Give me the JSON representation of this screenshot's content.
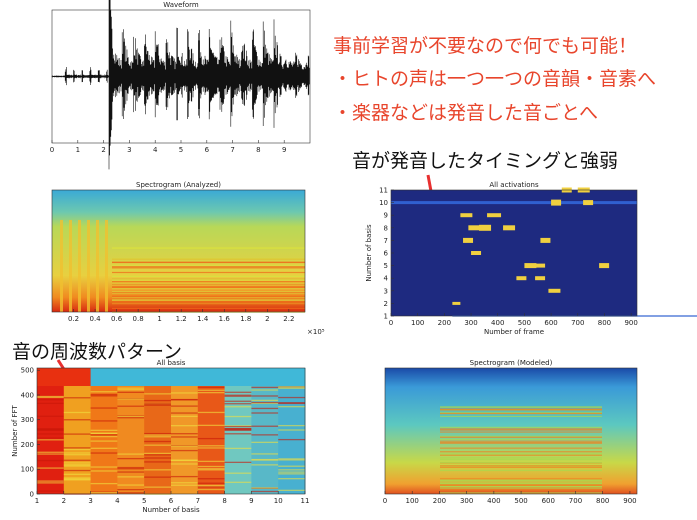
{
  "notes": {
    "red_lines": [
      "事前学習が不要なので何でも可能！",
      "・ヒトの声は一つ一つの音韻・音素へ",
      "・楽器などは発音した音ごとへ"
    ],
    "activation_caption": "音が発音したタイミングと強弱",
    "basis_caption": "音の周波数パターン"
  },
  "chart_data": [
    {
      "type": "waveform",
      "title": "Waveform",
      "xlim": [
        0,
        10
      ],
      "xticks": [
        0,
        1,
        2,
        3,
        4,
        5,
        6,
        7,
        8,
        9
      ]
    },
    {
      "type": "heatmap",
      "title": "Spectrogram (Analyzed)",
      "xlim": [
        0,
        2.35
      ],
      "xticks": [
        0.2,
        0.4,
        0.6,
        0.8,
        1,
        1.2,
        1.4,
        1.6,
        1.8,
        2,
        2.2
      ],
      "x_scale_label": "×10⁵"
    },
    {
      "type": "heatmap",
      "title": "All activations",
      "xlim": [
        0,
        922
      ],
      "xticks": [
        0,
        100,
        200,
        300,
        400,
        500,
        600,
        700,
        800,
        900
      ],
      "ylim": [
        1,
        11
      ],
      "yticks": [
        1,
        2,
        3,
        4,
        5,
        6,
        7,
        8,
        9,
        10,
        11
      ],
      "xlabel": "Number of frame",
      "ylabel": "Number of basis"
    },
    {
      "type": "heatmap",
      "title": "All basis",
      "xlim": [
        1,
        11
      ],
      "xticks": [
        1,
        2,
        3,
        4,
        5,
        6,
        7,
        8,
        9,
        10,
        11
      ],
      "ylim": [
        0,
        509
      ],
      "yticks": [
        0,
        100,
        200,
        300,
        400,
        500
      ],
      "xlabel": "Number of basis",
      "ylabel": "Number of FFT"
    },
    {
      "type": "heatmap",
      "title": "Spectrogram (Modeled)",
      "xlim": [
        0,
        926
      ],
      "xticks": [
        0,
        100,
        200,
        300,
        400,
        500,
        600,
        700,
        800,
        900
      ]
    }
  ]
}
